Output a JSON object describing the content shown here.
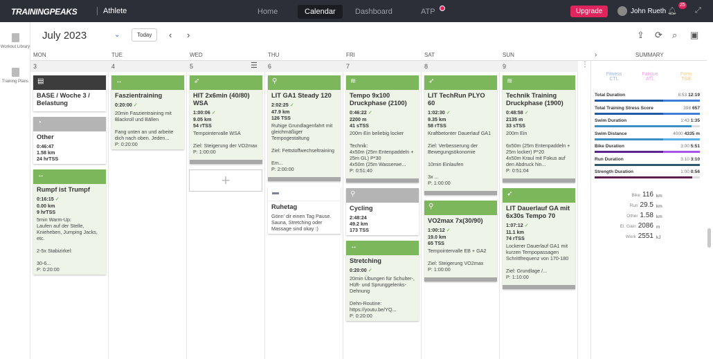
{
  "topbar": {
    "logo": "TRAININGPEAKS",
    "product": "Athlete",
    "nav": [
      "Home",
      "Calendar",
      "Dashboard",
      "ATP"
    ],
    "active": "Calendar",
    "upgrade": "Upgrade",
    "user": "John Rueth",
    "notifications": "25"
  },
  "sidebar": [
    {
      "label": "Workout Library",
      "icon": "book-icon"
    },
    {
      "label": "Training Plans",
      "icon": "plans-icon"
    }
  ],
  "header": {
    "month": "July 2023",
    "today": "Today"
  },
  "weekdays": [
    "MON",
    "TUE",
    "WED",
    "THU",
    "FRI",
    "SAT",
    "SUN"
  ],
  "dates": [
    "3",
    "4",
    "5",
    "6",
    "7",
    "8",
    "9"
  ],
  "summary_label": "SUMMARY",
  "days": [
    {
      "workouts": [
        {
          "style": "dark",
          "icon": "note-icon",
          "title": "BASE / Woche 3 / Belastung",
          "plain": true,
          "stats": [],
          "desc": "",
          "planned": ""
        },
        {
          "style": "gray",
          "icon": "stopwatch-icon",
          "title": "Other",
          "plain": true,
          "stats": [
            "0:46:47",
            "1.58 km",
            "24 hrTSS"
          ],
          "desc": "",
          "planned": ""
        },
        {
          "style": "green",
          "icon": "strength-icon",
          "title": "Rumpf ist Trumpf",
          "done": true,
          "stats": [
            "0:16:15",
            "0.00 km",
            "9 hrTSS"
          ],
          "desc": "5min Warm-Up:\nLaufen auf der Stelle, Knieheben, Jumping Jacks, etc.\n\n2-5x Stabizirkel:\n\n30-6...",
          "planned": "P: 0:20:00"
        }
      ]
    },
    {
      "workouts": [
        {
          "style": "green",
          "icon": "strength-icon",
          "title": "Faszientraining",
          "done": true,
          "stats": [
            "0:20:00"
          ],
          "desc": "20min Faszientraining mit Blackroll und Bällen\n\nFang unten an und arbeite dich nach oben. Jeden...",
          "planned": "P: 0:20:00"
        }
      ]
    },
    {
      "workouts": [
        {
          "style": "green",
          "icon": "run-icon",
          "title": "HIT 2x6min (40/80) WSA",
          "done": true,
          "stats": [
            "1:00:06",
            "9.05 km",
            "54 rTSS"
          ],
          "desc": "Tempointervalle WSA\n\nZiel: Steigerung der VO2max",
          "planned": "P: 1:00:00",
          "graph": true
        }
      ]
    },
    {
      "workouts": [
        {
          "style": "green",
          "icon": "bike-icon",
          "title": "LIT GA1 Steady 120",
          "done": true,
          "stats": [
            "2:02:25",
            "47.9 km",
            "126 TSS"
          ],
          "desc": "Ruhige Grundlagenfahrt mit gleichmäßiger Tempogestaltung\n\nZiel: Fettstoffwechseltraining\n\nEm...",
          "planned": "P: 2:00:00",
          "graph": true
        },
        {
          "style": "rest",
          "icon": "couch-icon",
          "title": "Ruhetag",
          "plain": true,
          "stats": [],
          "desc": "Gönn' dir einen Tag Pause. Sauna, Stretching oder Massage sind okay :)",
          "planned": ""
        }
      ]
    },
    {
      "workouts": [
        {
          "style": "green",
          "icon": "swim-icon",
          "title": "Tempo 9x100 Druckphase (2100)",
          "done": true,
          "stats": [
            "0:46:22",
            "2200 m",
            "41 sTSS"
          ],
          "desc": "200m Ein beliebig locker\n\nTechnik:\n4x50m (25m Entenpaddeln + 25m GL) P*30\n4x50m (25m Wasserwe...",
          "planned": "P: 0:51:40",
          "graph": true
        },
        {
          "style": "gray",
          "icon": "bike-icon",
          "title": "Cycling",
          "plain": true,
          "stats": [
            "2:48:24",
            "49.2 km",
            "173 TSS"
          ],
          "desc": "",
          "planned": ""
        },
        {
          "style": "green",
          "icon": "strength-icon",
          "title": "Stretching",
          "done": true,
          "stats": [
            "0:20:00"
          ],
          "desc": "20min Übungen für Schulter-, Hüft- und Sprunggelenks-Dehnung\n\nDehn-Routine:\nhttps://youtu.be/YQ...",
          "planned": "P: 0:20:00"
        }
      ]
    },
    {
      "workouts": [
        {
          "style": "green",
          "icon": "run-icon",
          "title": "LIT TechRun PLYO 60",
          "done": true,
          "stats": [
            "1:02:30",
            "9.35 km",
            "58 rTSS"
          ],
          "desc": "Kraftbetonter Dauerlauf GA1\n\nZiel: Verbesserung der Bewegungsökonomie\n\n10min Einlaufen\n\n3x ...",
          "planned": "P: 1:00:00",
          "graph": true
        },
        {
          "style": "green",
          "icon": "bike-icon",
          "title": "VO2max 7x(30/90)",
          "done": true,
          "stats": [
            "1:00:12",
            "19.0 km",
            "65 TSS"
          ],
          "desc": "Tempointervalle EB + GA2\n\nZiel: Steigerung VO2max",
          "planned": "P: 1:00:00",
          "graph": true
        }
      ]
    },
    {
      "workouts": [
        {
          "style": "green",
          "icon": "swim-icon",
          "title": "Technik Training Druckphase (1900)",
          "done": true,
          "stats": [
            "0:48:58",
            "2135 m",
            "33 sTSS"
          ],
          "desc": "200m Ein\n\n6x50m (25m Entenpaddeln + 25m locker) P*20\n4x50m Kraul mit Fokus auf den Abdruck hin...",
          "planned": "P: 0:51:04",
          "graph": true
        },
        {
          "style": "green",
          "icon": "run-icon",
          "title": "LIT Dauerlauf GA mit 6x30s Tempo 70",
          "done": true,
          "stats": [
            "1:07:12",
            "11.1 km",
            "74 rTSS"
          ],
          "desc": "Lockerer Dauerlauf GA1 mit kurzen Tempopassagen Schrittfrequenz von 170-180\n\nZiel: Grundlage /...",
          "planned": "P: 1:10:00",
          "graph": true
        }
      ]
    }
  ],
  "fitness": [
    {
      "label": "Fitness",
      "abbr": "CTL",
      "color": "#9fb3d6"
    },
    {
      "label": "Fatigue",
      "abbr": "ATL",
      "color": "#f0a0e6"
    },
    {
      "label": "Form",
      "abbr": "TSB",
      "color": "#f5c98a"
    }
  ],
  "metrics": [
    {
      "label": "Total Duration",
      "planned": "8:53",
      "actual": "12:19",
      "fill": 1,
      "color": "#1f5aa6",
      "color2": "#3b7dd8"
    },
    {
      "label": "Total Training Stress Score",
      "planned": "398",
      "actual": "657",
      "fill": 1,
      "color": "#1f5aa6",
      "color2": "#3b7dd8"
    },
    {
      "label": "Swim Duration",
      "planned": "1:43",
      "actual": "1:35",
      "fill": 0.92,
      "color": "#3a8fc7",
      "color2": "#3a8fc7"
    },
    {
      "label": "Swim Distance",
      "planned": "4000",
      "actual": "4335 m",
      "fill": 1,
      "color": "#3a8fc7",
      "color2": "#5ab0ea"
    },
    {
      "label": "Bike Duration",
      "planned": "3:00",
      "actual": "5:51",
      "fill": 1,
      "color": "#5a2590",
      "color2": "#a655e8"
    },
    {
      "label": "Run Duration",
      "planned": "3:10",
      "actual": "3:10",
      "fill": 1,
      "color": "#2c5a68",
      "color2": "#2c5a68"
    },
    {
      "label": "Strength Duration",
      "planned": "1:00",
      "actual": "0:56",
      "fill": 0.93,
      "color": "#5c1f4f",
      "color2": "#5c1f4f"
    }
  ],
  "totals": [
    {
      "label": "Bike",
      "value": "116",
      "unit": "km"
    },
    {
      "label": "Run",
      "value": "29.5",
      "unit": "km"
    },
    {
      "label": "Other",
      "value": "1.58",
      "unit": "km"
    },
    {
      "label": "El. Gain",
      "value": "2086",
      "unit": "m"
    },
    {
      "label": "Work",
      "value": "2551",
      "unit": "kJ"
    }
  ]
}
